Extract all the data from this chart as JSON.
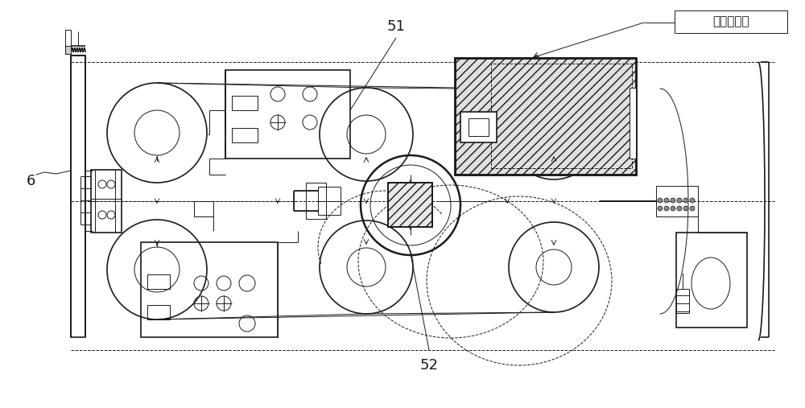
{
  "bg_color": "#ffffff",
  "line_color": "#1a1a1a",
  "label_51": "51",
  "label_52": "52",
  "label_6": "6",
  "label_chip": "卡芯片识别",
  "figsize": [
    10.0,
    5.07
  ],
  "dpi": 100
}
